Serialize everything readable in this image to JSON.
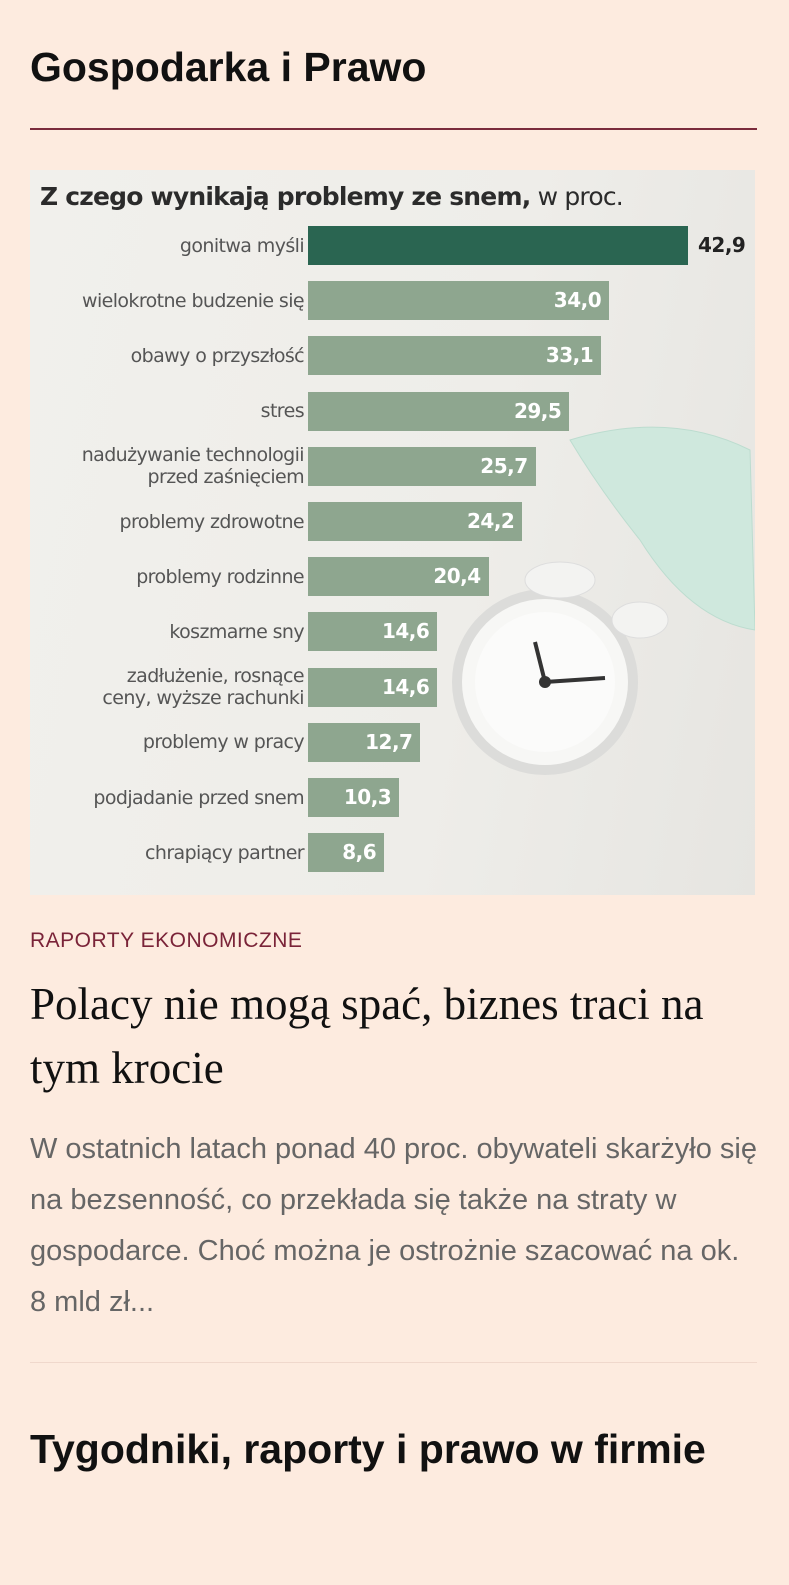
{
  "section_title": "Gospodarka i Prawo",
  "chart_data": {
    "type": "hbar",
    "title": "Z czego wynikają problemy ze snem,",
    "subtitle": "w proc.",
    "categories": [
      "gonitwa myśli",
      "wielokrotne budzenie się",
      "obawy o przyszłość",
      "stres",
      "nadużywanie technologii\nprzed zaśnięciem",
      "problemy zdrowotne",
      "problemy rodzinne",
      "koszmarne sny",
      "zadłużenie, rosnące\nceny, wyższe rachunki",
      "problemy w pracy",
      "podjadanie przed snem",
      "chrapiący partner"
    ],
    "values": [
      42.9,
      34.0,
      33.1,
      29.5,
      25.7,
      24.2,
      20.4,
      14.6,
      14.6,
      12.7,
      10.3,
      8.6
    ],
    "value_labels": [
      "42,9",
      "34,0",
      "33,1",
      "29,5",
      "25,7",
      "24,2",
      "20,4",
      "14,6",
      "14,6",
      "12,7",
      "10,3",
      "8,6"
    ],
    "colors": [
      "#2a6551",
      "#8ea68f",
      "#8ea68f",
      "#8ea68f",
      "#8ea68f",
      "#8ea68f",
      "#8ea68f",
      "#8ea68f",
      "#8ea68f",
      "#8ea68f",
      "#8ea68f",
      "#8ea68f"
    ]
  },
  "article": {
    "category": "RAPORTY EKONOMICZNE",
    "headline": "Polacy nie mogą spać, biznes traci na tym krocie",
    "excerpt": "W ostatnich latach ponad 40 proc. obywateli skarżyło się na bezsenność, co przekłada się także na straty w gospodarce. Choć można je ostrożnie szacować na ok. 8 mld zł..."
  },
  "next_section_title": "Tygodniki, raporty i prawo w firmie"
}
